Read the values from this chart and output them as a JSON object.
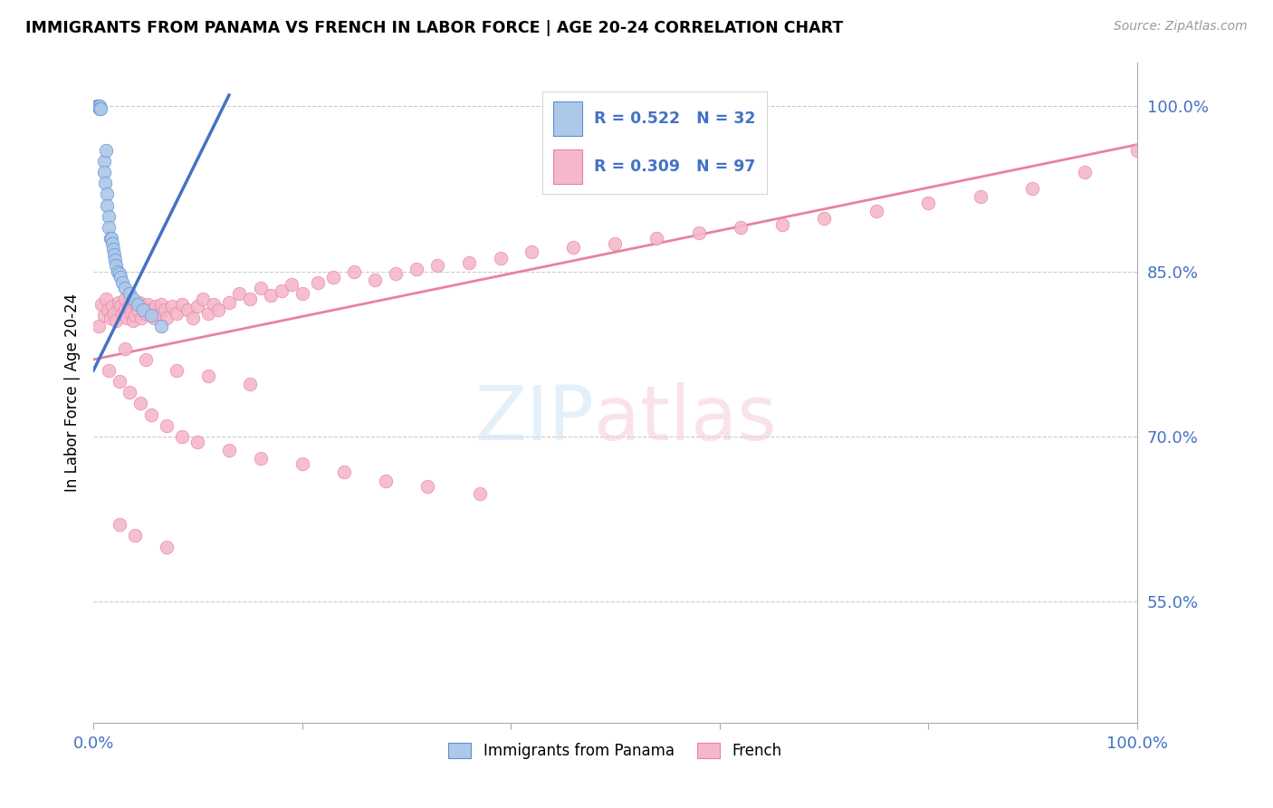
{
  "title": "IMMIGRANTS FROM PANAMA VS FRENCH IN LABOR FORCE | AGE 20-24 CORRELATION CHART",
  "source": "Source: ZipAtlas.com",
  "ylabel": "In Labor Force | Age 20-24",
  "xlim": [
    0.0,
    1.0
  ],
  "ylim": [
    0.44,
    1.04
  ],
  "yticks": [
    0.55,
    0.7,
    0.85,
    1.0
  ],
  "ytick_labels": [
    "55.0%",
    "70.0%",
    "85.0%",
    "100.0%"
  ],
  "xtick_labels": [
    "0.0%",
    "100.0%"
  ],
  "xtick_pos": [
    0.0,
    1.0
  ],
  "panama_R": 0.522,
  "panama_N": 32,
  "french_R": 0.309,
  "french_N": 97,
  "panama_color": "#adc8e8",
  "french_color": "#f5b8cb",
  "panama_edge_color": "#5b8fd4",
  "french_edge_color": "#e8829e",
  "panama_line_color": "#4472c4",
  "french_line_color": "#e8829e",
  "panama_points_x": [
    0.003,
    0.004,
    0.005,
    0.006,
    0.006,
    0.007,
    0.01,
    0.01,
    0.011,
    0.012,
    0.013,
    0.013,
    0.015,
    0.015,
    0.016,
    0.017,
    0.018,
    0.019,
    0.02,
    0.021,
    0.022,
    0.023,
    0.025,
    0.026,
    0.028,
    0.03,
    0.035,
    0.038,
    0.042,
    0.048,
    0.055,
    0.065
  ],
  "panama_points_y": [
    1.0,
    1.0,
    1.0,
    1.0,
    0.998,
    0.998,
    0.95,
    0.94,
    0.93,
    0.96,
    0.92,
    0.91,
    0.9,
    0.89,
    0.88,
    0.88,
    0.875,
    0.87,
    0.865,
    0.86,
    0.855,
    0.85,
    0.848,
    0.845,
    0.84,
    0.835,
    0.83,
    0.825,
    0.82,
    0.815,
    0.81,
    0.8
  ],
  "french_points_x": [
    0.005,
    0.008,
    0.01,
    0.012,
    0.014,
    0.016,
    0.018,
    0.02,
    0.022,
    0.024,
    0.026,
    0.028,
    0.03,
    0.03,
    0.032,
    0.034,
    0.036,
    0.038,
    0.04,
    0.04,
    0.042,
    0.044,
    0.046,
    0.048,
    0.05,
    0.052,
    0.055,
    0.058,
    0.06,
    0.063,
    0.065,
    0.068,
    0.07,
    0.075,
    0.08,
    0.085,
    0.09,
    0.095,
    0.1,
    0.105,
    0.11,
    0.115,
    0.12,
    0.13,
    0.14,
    0.15,
    0.16,
    0.17,
    0.18,
    0.19,
    0.2,
    0.215,
    0.23,
    0.25,
    0.27,
    0.29,
    0.31,
    0.33,
    0.36,
    0.39,
    0.42,
    0.46,
    0.5,
    0.54,
    0.58,
    0.62,
    0.66,
    0.7,
    0.75,
    0.8,
    0.85,
    0.9,
    0.95,
    1.0,
    0.015,
    0.025,
    0.035,
    0.045,
    0.055,
    0.07,
    0.085,
    0.1,
    0.13,
    0.16,
    0.2,
    0.24,
    0.28,
    0.32,
    0.37,
    0.03,
    0.05,
    0.08,
    0.11,
    0.15,
    0.025,
    0.04,
    0.07
  ],
  "french_points_y": [
    0.8,
    0.82,
    0.81,
    0.825,
    0.815,
    0.808,
    0.818,
    0.812,
    0.805,
    0.822,
    0.818,
    0.812,
    0.825,
    0.815,
    0.808,
    0.818,
    0.812,
    0.805,
    0.82,
    0.81,
    0.815,
    0.822,
    0.808,
    0.818,
    0.812,
    0.82,
    0.815,
    0.808,
    0.818,
    0.812,
    0.82,
    0.815,
    0.808,
    0.818,
    0.812,
    0.82,
    0.815,
    0.808,
    0.818,
    0.825,
    0.812,
    0.82,
    0.815,
    0.822,
    0.83,
    0.825,
    0.835,
    0.828,
    0.832,
    0.838,
    0.83,
    0.84,
    0.845,
    0.85,
    0.842,
    0.848,
    0.852,
    0.855,
    0.858,
    0.862,
    0.868,
    0.872,
    0.875,
    0.88,
    0.885,
    0.89,
    0.892,
    0.898,
    0.905,
    0.912,
    0.918,
    0.925,
    0.94,
    0.96,
    0.76,
    0.75,
    0.74,
    0.73,
    0.72,
    0.71,
    0.7,
    0.695,
    0.688,
    0.68,
    0.675,
    0.668,
    0.66,
    0.655,
    0.648,
    0.78,
    0.77,
    0.76,
    0.755,
    0.748,
    0.62,
    0.61,
    0.6
  ],
  "panama_line_x": [
    0.0,
    0.13
  ],
  "panama_line_y": [
    0.76,
    1.01
  ],
  "french_line_x": [
    0.0,
    1.0
  ],
  "french_line_y": [
    0.77,
    0.965
  ]
}
